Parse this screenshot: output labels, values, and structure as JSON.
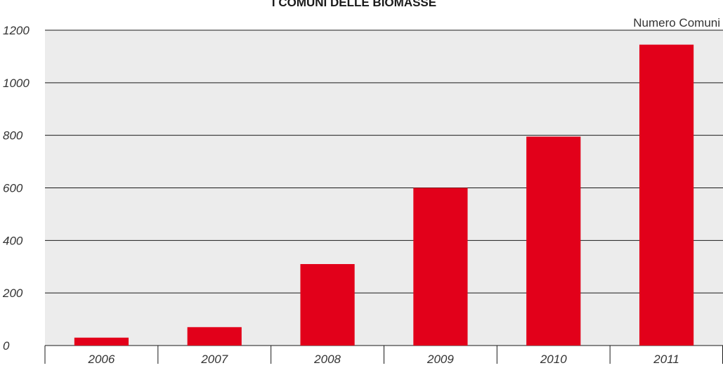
{
  "chart_data": {
    "type": "bar",
    "title": "I COMUNI DELLE BIOMASSE",
    "unit_label": "Numero Comuni",
    "xlabel": "",
    "ylabel": "",
    "categories": [
      "2006",
      "2007",
      "2008",
      "2009",
      "2010",
      "2011"
    ],
    "values": [
      30,
      70,
      310,
      600,
      795,
      1145
    ],
    "ylim": [
      0,
      1200
    ],
    "yticks": [
      "0",
      "200",
      "400",
      "600",
      "800",
      "1000",
      "1200"
    ],
    "grid": true,
    "legend": "none",
    "colors": {
      "bar": "#e2001a",
      "plot_background": "#ececec",
      "grid": "#1a1a1a"
    }
  }
}
